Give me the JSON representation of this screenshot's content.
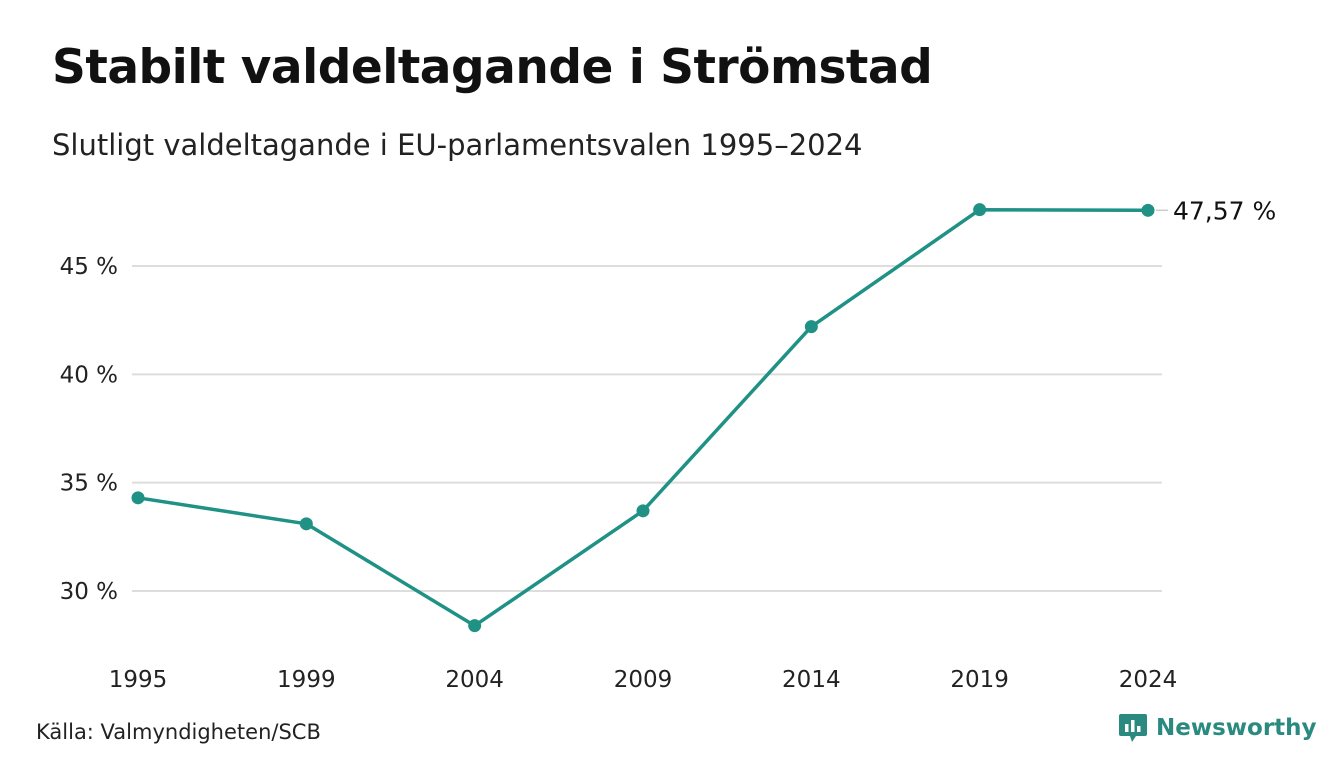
{
  "chart_data": {
    "type": "line",
    "title": "Stabilt valdeltagande i Strömstad",
    "subtitle": "Slutligt valdeltagande i EU-parlamentsvalen 1995–2024",
    "xlabel": "",
    "ylabel": "",
    "categories": [
      "1995",
      "1999",
      "2004",
      "2009",
      "2014",
      "2019",
      "2024"
    ],
    "series": [
      {
        "values": [
          34.3,
          33.1,
          28.4,
          33.7,
          42.2,
          47.6,
          47.57
        ]
      }
    ],
    "ylim": [
      27.5,
      48.5
    ],
    "yticks": [
      30,
      35,
      40,
      45
    ],
    "ytick_labels": [
      "30 %",
      "35 %",
      "40 %",
      "45 %"
    ],
    "end_label": "47,57 %",
    "grid": "horizontal",
    "legend": "none",
    "line_color": "#1f9185",
    "grid_color": "#dddddd"
  },
  "footer": {
    "source": "Källa: Valmyndigheten/SCB",
    "brand": "Newsworthy"
  }
}
